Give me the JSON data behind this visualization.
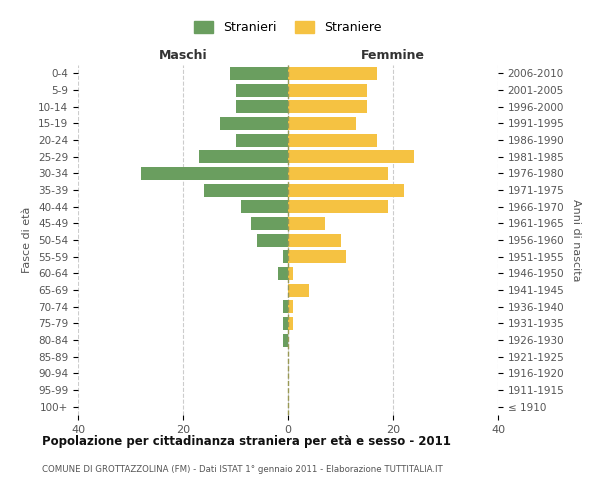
{
  "age_groups": [
    "100+",
    "95-99",
    "90-94",
    "85-89",
    "80-84",
    "75-79",
    "70-74",
    "65-69",
    "60-64",
    "55-59",
    "50-54",
    "45-49",
    "40-44",
    "35-39",
    "30-34",
    "25-29",
    "20-24",
    "15-19",
    "10-14",
    "5-9",
    "0-4"
  ],
  "birth_years": [
    "≤ 1910",
    "1911-1915",
    "1916-1920",
    "1921-1925",
    "1926-1930",
    "1931-1935",
    "1936-1940",
    "1941-1945",
    "1946-1950",
    "1951-1955",
    "1956-1960",
    "1961-1965",
    "1966-1970",
    "1971-1975",
    "1976-1980",
    "1981-1985",
    "1986-1990",
    "1991-1995",
    "1996-2000",
    "2001-2005",
    "2006-2010"
  ],
  "maschi": [
    0,
    0,
    0,
    0,
    1,
    1,
    1,
    0,
    2,
    1,
    6,
    7,
    9,
    16,
    28,
    17,
    10,
    13,
    10,
    10,
    11
  ],
  "femmine": [
    0,
    0,
    0,
    0,
    0,
    1,
    1,
    4,
    1,
    11,
    10,
    7,
    19,
    22,
    19,
    24,
    17,
    13,
    15,
    15,
    17
  ],
  "maschi_color": "#6a9e5f",
  "femmine_color": "#f5c242",
  "background_color": "#ffffff",
  "grid_color": "#cccccc",
  "title": "Popolazione per cittadinanza straniera per età e sesso - 2011",
  "subtitle": "COMUNE DI GROTTAZZOLINA (FM) - Dati ISTAT 1° gennaio 2011 - Elaborazione TUTTITALIA.IT",
  "xlabel_left": "Maschi",
  "xlabel_right": "Femmine",
  "ylabel_left": "Fasce di età",
  "ylabel_right": "Anni di nascita",
  "legend_stranieri": "Stranieri",
  "legend_straniere": "Straniere",
  "xlim": 40,
  "bar_height": 0.78
}
